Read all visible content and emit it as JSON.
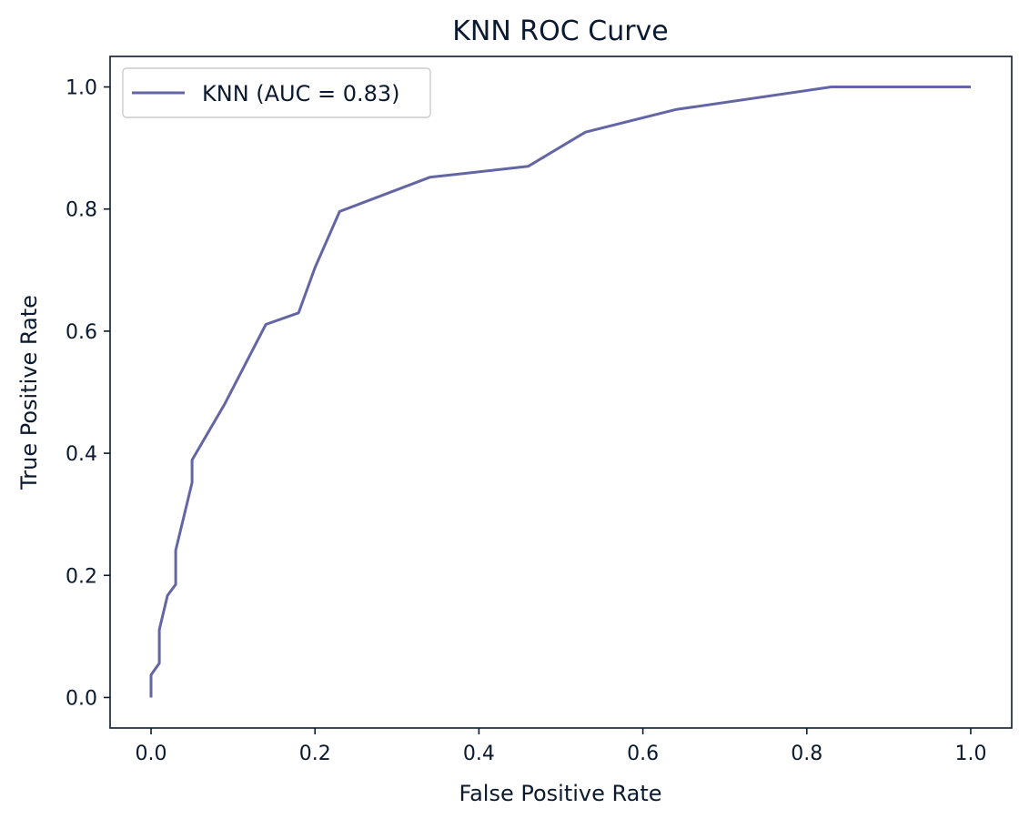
{
  "chart_data": {
    "type": "line",
    "title": "KNN ROC Curve",
    "xlabel": "False Positive Rate",
    "ylabel": "True Positive Rate",
    "xlim": [
      -0.05,
      1.05
    ],
    "ylim": [
      -0.05,
      1.05
    ],
    "xticks": [
      0.0,
      0.2,
      0.4,
      0.6,
      0.8,
      1.0
    ],
    "xtick_labels": [
      "0.0",
      "0.2",
      "0.4",
      "0.6",
      "0.8",
      "1.0"
    ],
    "yticks": [
      0.0,
      0.2,
      0.4,
      0.6,
      0.8,
      1.0
    ],
    "ytick_labels": [
      "0.0",
      "0.2",
      "0.4",
      "0.6",
      "0.8",
      "1.0"
    ],
    "grid": false,
    "legend_position": "upper-left",
    "series": [
      {
        "name": "KNN (AUC = 0.83)",
        "color": "#6366a3",
        "x": [
          0.0,
          0.0,
          0.01,
          0.01,
          0.02,
          0.03,
          0.03,
          0.05,
          0.05,
          0.09,
          0.14,
          0.18,
          0.2,
          0.23,
          0.34,
          0.46,
          0.53,
          0.64,
          0.83,
          1.0
        ],
        "y": [
          0.0,
          0.037,
          0.056,
          0.111,
          0.167,
          0.185,
          0.241,
          0.352,
          0.389,
          0.481,
          0.611,
          0.63,
          0.704,
          0.796,
          0.852,
          0.87,
          0.926,
          0.963,
          1.0,
          1.0
        ]
      }
    ]
  }
}
